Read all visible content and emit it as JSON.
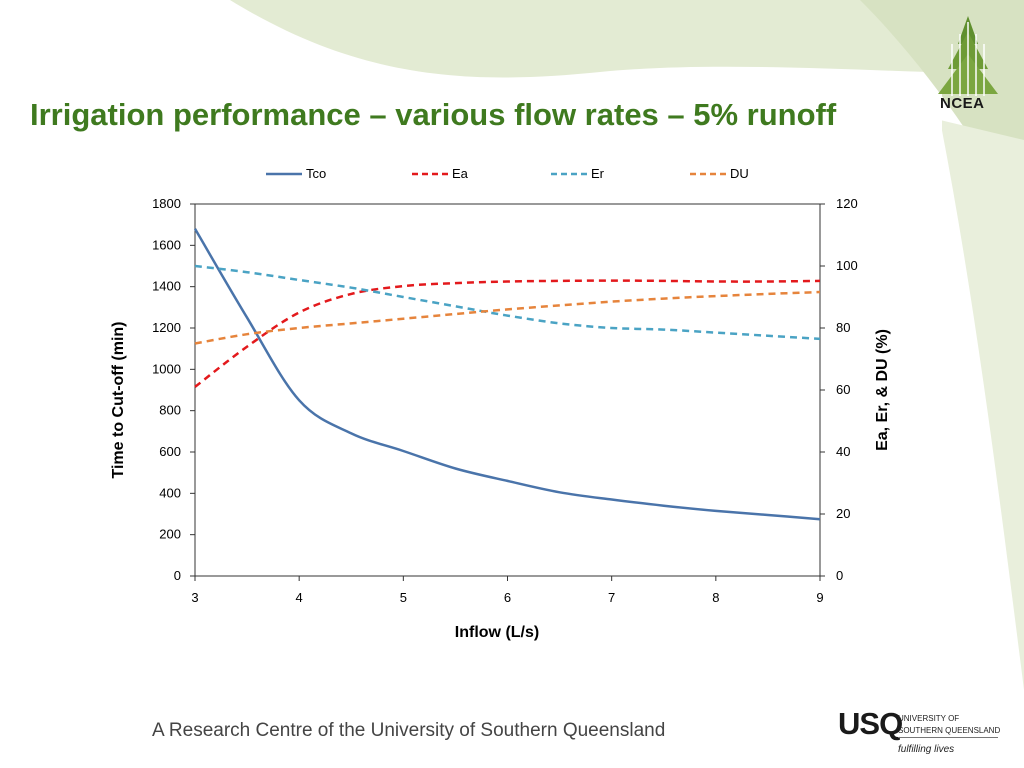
{
  "slide": {
    "title": "Irrigation performance – various flow rates – 5% runoff",
    "logo_text": "NCEA",
    "footer": "A Research Centre of the University of Southern Queensland",
    "usq": {
      "mark": "USQ",
      "line1": "UNIVERSITY OF",
      "line2": "SOUTHERN QUEENSLAND",
      "tagline": "fulfilling lives"
    }
  },
  "chart_data": {
    "type": "line",
    "title": "",
    "xlabel": "Inflow (L/s)",
    "ylabel": "Time  to Cut-off  (min)",
    "y2label": "Ea, Er, & DU (%)",
    "xlim": [
      3,
      9
    ],
    "ylim": [
      0,
      1800
    ],
    "y2lim": [
      0,
      120
    ],
    "x_ticks": [
      3,
      4,
      5,
      6,
      7,
      8,
      9
    ],
    "y_ticks": [
      0,
      200,
      400,
      600,
      800,
      1000,
      1200,
      1400,
      1600,
      1800
    ],
    "y2_ticks": [
      0,
      20,
      40,
      60,
      80,
      100,
      120
    ],
    "grid": false,
    "legend_position": "top",
    "series": [
      {
        "name": "Tco",
        "axis": "left",
        "color": "#4a74aa",
        "dash": "solid",
        "x": [
          3,
          3.5,
          4,
          4.5,
          5,
          5.5,
          6,
          6.5,
          7,
          7.5,
          8,
          8.5,
          9
        ],
        "values": [
          1680,
          1250,
          850,
          690,
          605,
          520,
          460,
          405,
          370,
          340,
          315,
          295,
          275
        ]
      },
      {
        "name": "Ea",
        "axis": "right",
        "color": "#e3191c",
        "dash": "dashed",
        "x": [
          3,
          3.5,
          4,
          4.5,
          5,
          5.5,
          6,
          6.5,
          7,
          7.5,
          8,
          8.5,
          9
        ],
        "values": [
          61,
          74,
          85,
          91,
          93.5,
          94.5,
          95,
          95.2,
          95.3,
          95.2,
          95,
          95,
          95.2
        ]
      },
      {
        "name": "Er",
        "axis": "right",
        "color": "#4aa3c4",
        "dash": "dashed",
        "x": [
          3,
          3.5,
          4,
          4.5,
          5,
          5.5,
          6,
          6.5,
          7,
          7.5,
          8,
          8.5,
          9
        ],
        "values": [
          100,
          98,
          95.5,
          93,
          90,
          87,
          84,
          81.5,
          80,
          79.5,
          78.5,
          77.5,
          76.5
        ]
      },
      {
        "name": "DU",
        "axis": "right",
        "color": "#e6843c",
        "dash": "dashed",
        "x": [
          3,
          3.5,
          4,
          4.5,
          5,
          5.5,
          6,
          6.5,
          7,
          7.5,
          8,
          8.5,
          9
        ],
        "values": [
          75,
          78,
          80,
          81.5,
          83,
          84.5,
          86,
          87.3,
          88.5,
          89.5,
          90.3,
          91,
          91.6
        ]
      }
    ]
  }
}
